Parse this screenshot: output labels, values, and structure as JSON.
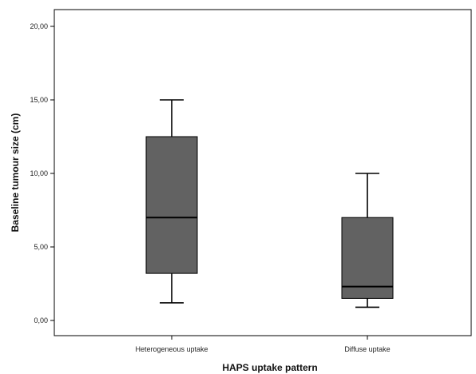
{
  "chart_data": {
    "type": "boxplot",
    "title": "",
    "xlabel": "HAPS uptake pattern",
    "ylabel": "Baseline tumour size (cm)",
    "ylim": [
      -0.5,
      21
    ],
    "yticks": [
      0,
      5,
      10,
      15,
      20
    ],
    "ytick_labels": [
      "0,00",
      "5,00",
      "10,00",
      "15,00",
      "20,00"
    ],
    "grid": false,
    "legend": "none",
    "categories": [
      "Heterogeneous uptake",
      "Diffuse uptake"
    ],
    "boxes": [
      {
        "category": "Heterogeneous uptake",
        "min": 1.2,
        "q1": 3.2,
        "median": 7.0,
        "q3": 12.5,
        "max": 15.0
      },
      {
        "category": "Diffuse uptake",
        "min": 0.9,
        "q1": 1.5,
        "median": 2.3,
        "q3": 7.0,
        "max": 10.0
      }
    ],
    "colors": {
      "box_fill": "#626262",
      "box_stroke": "#000000",
      "median_line": "#000000",
      "axis": "#000000"
    }
  }
}
